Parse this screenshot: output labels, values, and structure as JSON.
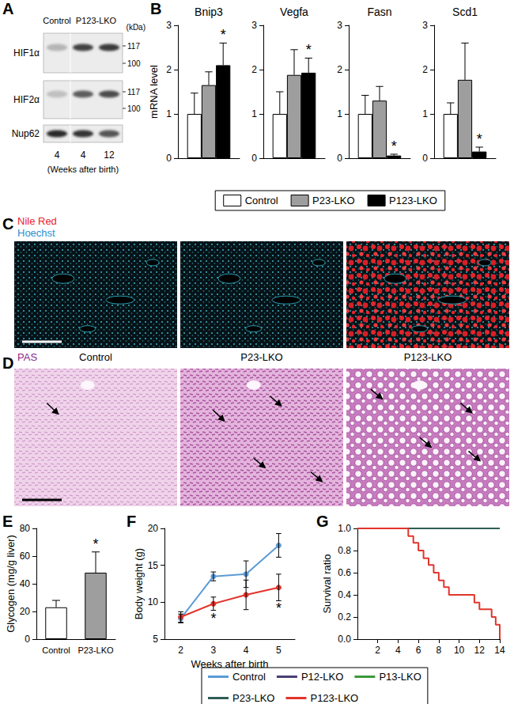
{
  "panels": [
    {
      "panel": "A",
      "lanes": [
        {
          "label": "Control",
          "weeks": [
            4
          ]
        },
        {
          "label": "P123-LKO",
          "weeks": [
            4,
            12
          ]
        }
      ],
      "blots": [
        {
          "label": "HIF1α",
          "markers": [
            117,
            100
          ]
        },
        {
          "label": "HIF2α",
          "markers": [
            117,
            100
          ]
        },
        {
          "label": "Nup62",
          "markers": []
        }
      ],
      "marker_unit": "(kDa)",
      "weeks_caption": "(Weeks after birth)"
    },
    {
      "panel": "C",
      "stains": [
        {
          "label": "Nile Red",
          "color": "#e8232b"
        },
        {
          "label": "Hoechst",
          "color": "#2a8fd0"
        }
      ]
    },
    {
      "panel": "D",
      "stains": [
        {
          "label": "PAS",
          "color": "#8b2a8b"
        }
      ],
      "columns": [
        "Control",
        "P23-LKO",
        "P123-LKO"
      ]
    }
  ],
  "chart_data": [
    {
      "panel": "B",
      "type": "bar",
      "ylabel": "mRNA level",
      "categories": [
        "Bnip3",
        "Vegfa",
        "Fasn",
        "Scd1"
      ],
      "ylim": [
        0,
        3
      ],
      "yticks": [
        0,
        1,
        2,
        3
      ],
      "grid": false,
      "legend": "bottom",
      "series": [
        {
          "name": "Control",
          "color": "#ffffff",
          "values": [
            1,
            1,
            1,
            1
          ],
          "errors": [
            0.47,
            0.5,
            0.42,
            0.25
          ]
        },
        {
          "name": "P23-LKO",
          "color": "#9e9e9e",
          "values": [
            1.65,
            1.88,
            1.3,
            1.77
          ],
          "errors": [
            0.3,
            0.57,
            0.32,
            0.83
          ]
        },
        {
          "name": "P123-LKO",
          "color": "#000000",
          "values": [
            2.1,
            1.93,
            0.06,
            0.15
          ],
          "errors": [
            0.5,
            0.33,
            0.03,
            0.1
          ],
          "significance": [
            "*",
            "*",
            "*",
            "*"
          ]
        }
      ]
    },
    {
      "panel": "E",
      "type": "bar",
      "ylabel": "Glycogen (mg/g liver)",
      "categories": [
        "Control",
        "P23-LKO"
      ],
      "values": [
        23,
        48
      ],
      "errors": [
        5,
        15
      ],
      "colors": [
        "#ffffff",
        "#9e9e9e"
      ],
      "significance": [
        null,
        "*"
      ],
      "ylim": [
        0,
        80
      ],
      "yticks": [
        0,
        20,
        40,
        60,
        80
      ],
      "grid": false
    },
    {
      "panel": "F",
      "type": "line",
      "ylabel": "Body weight (g)",
      "xlabel": "Weeks after birth",
      "categories": [
        "2",
        "3",
        "4",
        "5"
      ],
      "ylim": [
        5,
        20
      ],
      "yticks": [
        5,
        10,
        15,
        20
      ],
      "grid": false,
      "marker": "circle",
      "legend": "bottom",
      "series": [
        {
          "name": "Control",
          "color": "#5b9bd5",
          "values": [
            7.8,
            13.5,
            13.8,
            17.7
          ],
          "errors": [
            0.6,
            0.6,
            1.8,
            1.6
          ]
        },
        {
          "name": "P123-LKO",
          "color": "#e2342c",
          "values": [
            8.0,
            9.8,
            11.0,
            12.0
          ],
          "errors": [
            0.7,
            0.9,
            2.0,
            1.8
          ],
          "significance": [
            null,
            "*",
            null,
            "*"
          ]
        }
      ]
    },
    {
      "panel": "G",
      "type": "line",
      "line_style": "step",
      "ylabel": "Survival ratio",
      "xlim": [
        0,
        14
      ],
      "xticks": [
        2,
        4,
        6,
        8,
        10,
        12,
        14
      ],
      "ylim": [
        0,
        1
      ],
      "yticks": [
        {
          "value": 0,
          "label": "0.0"
        },
        {
          "value": 0.2,
          "label": "0.2"
        },
        {
          "value": 0.4,
          "label": "0.4"
        },
        {
          "value": 0.6,
          "label": "0.6"
        },
        {
          "value": 0.8,
          "label": "0.8"
        },
        {
          "value": 1,
          "label": "1.0"
        }
      ],
      "grid": false,
      "legend": "bottom",
      "series": [
        {
          "name": "P12-LKO",
          "color": "#4a3f74",
          "x": [
            0,
            14
          ],
          "values": [
            1,
            1
          ]
        },
        {
          "name": "P13-LKO",
          "color": "#3a9a3a",
          "x": [
            0,
            14
          ],
          "values": [
            1,
            1
          ]
        },
        {
          "name": "P23-LKO",
          "color": "#2e5e57",
          "x": [
            0,
            14
          ],
          "values": [
            1,
            1
          ]
        },
        {
          "name": "P123-LKO",
          "color": "#e2342c",
          "x": [
            0,
            5,
            5.5,
            6,
            6.5,
            7,
            7.5,
            8,
            8.5,
            9,
            11.5,
            12,
            13.2,
            13.6,
            14
          ],
          "values": [
            1,
            0.93,
            0.87,
            0.8,
            0.73,
            0.67,
            0.6,
            0.53,
            0.47,
            0.4,
            0.33,
            0.27,
            0.2,
            0.13,
            0
          ]
        }
      ]
    }
  ]
}
